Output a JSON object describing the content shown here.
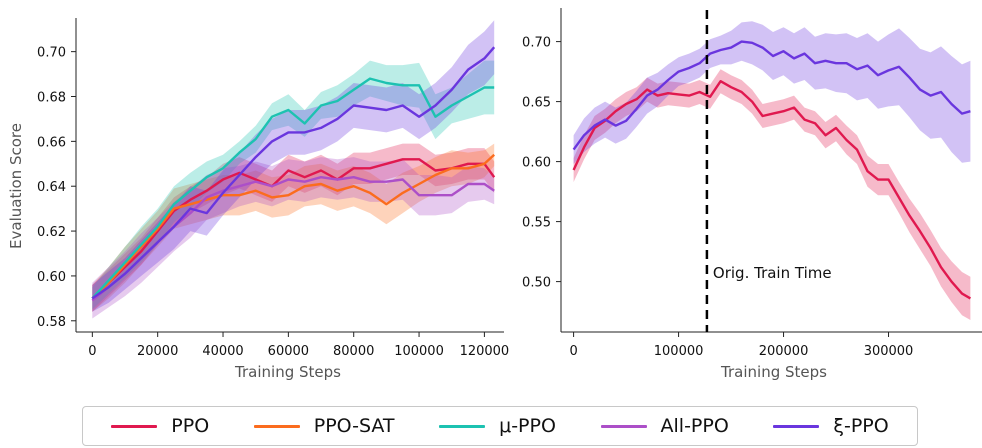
{
  "chart_data": [
    {
      "type": "line",
      "xlabel": "Training Steps",
      "ylabel": "Evaluation Score",
      "xlim": [
        -5000,
        126000
      ],
      "ylim": [
        0.575,
        0.715
      ],
      "xticks": [
        0,
        20000,
        40000,
        60000,
        80000,
        100000,
        120000
      ],
      "yticks": [
        0.58,
        0.6,
        0.62,
        0.64,
        0.66,
        0.68,
        0.7
      ],
      "ytick_labels": [
        "0.58",
        "0.60",
        "0.62",
        "0.64",
        "0.66",
        "0.68",
        "0.70"
      ],
      "x": [
        0,
        5000,
        10000,
        15000,
        20000,
        25000,
        30000,
        35000,
        40000,
        45000,
        50000,
        55000,
        60000,
        65000,
        70000,
        75000,
        80000,
        85000,
        90000,
        95000,
        100000,
        105000,
        110000,
        115000,
        120000,
        123000
      ],
      "series": [
        {
          "name": "PPO",
          "color": "#e0194f",
          "values": [
            0.59,
            0.597,
            0.604,
            0.611,
            0.62,
            0.629,
            0.634,
            0.638,
            0.643,
            0.646,
            0.643,
            0.64,
            0.647,
            0.644,
            0.647,
            0.643,
            0.648,
            0.648,
            0.65,
            0.652,
            0.652,
            0.647,
            0.648,
            0.65,
            0.65,
            0.644
          ],
          "spread": [
            0.006,
            0.006,
            0.006,
            0.006,
            0.006,
            0.006,
            0.006,
            0.006,
            0.007,
            0.007,
            0.007,
            0.007,
            0.007,
            0.007,
            0.007,
            0.007,
            0.007,
            0.007,
            0.007,
            0.007,
            0.007,
            0.007,
            0.007,
            0.007,
            0.007,
            0.007
          ]
        },
        {
          "name": "PPO-SAT",
          "color": "#fb6c1e",
          "values": [
            0.59,
            0.597,
            0.605,
            0.613,
            0.621,
            0.63,
            0.632,
            0.634,
            0.636,
            0.636,
            0.638,
            0.635,
            0.636,
            0.64,
            0.641,
            0.638,
            0.64,
            0.637,
            0.632,
            0.637,
            0.641,
            0.645,
            0.648,
            0.648,
            0.65,
            0.654
          ],
          "spread": [
            0.006,
            0.007,
            0.008,
            0.008,
            0.008,
            0.009,
            0.009,
            0.009,
            0.009,
            0.009,
            0.009,
            0.009,
            0.009,
            0.009,
            0.009,
            0.009,
            0.009,
            0.009,
            0.009,
            0.009,
            0.008,
            0.008,
            0.008,
            0.007,
            0.006,
            0.005
          ]
        },
        {
          "name": "μ-PPO",
          "color": "#1dc2b1",
          "values": [
            0.59,
            0.598,
            0.606,
            0.614,
            0.622,
            0.632,
            0.638,
            0.644,
            0.648,
            0.655,
            0.661,
            0.671,
            0.674,
            0.668,
            0.676,
            0.678,
            0.683,
            0.688,
            0.686,
            0.685,
            0.685,
            0.671,
            0.676,
            0.68,
            0.684,
            0.684
          ],
          "spread": [
            0.005,
            0.006,
            0.007,
            0.008,
            0.008,
            0.008,
            0.008,
            0.007,
            0.006,
            0.005,
            0.006,
            0.006,
            0.007,
            0.006,
            0.006,
            0.007,
            0.007,
            0.008,
            0.008,
            0.009,
            0.01,
            0.01,
            0.008,
            0.01,
            0.012,
            0.012
          ]
        },
        {
          "name": "All-PPO",
          "color": "#ac4fc8",
          "values": [
            0.589,
            0.595,
            0.601,
            0.608,
            0.615,
            0.622,
            0.628,
            0.635,
            0.638,
            0.64,
            0.642,
            0.64,
            0.643,
            0.642,
            0.644,
            0.643,
            0.644,
            0.642,
            0.642,
            0.643,
            0.636,
            0.636,
            0.636,
            0.641,
            0.641,
            0.638
          ],
          "spread": [
            0.008,
            0.009,
            0.01,
            0.011,
            0.011,
            0.011,
            0.011,
            0.01,
            0.01,
            0.009,
            0.009,
            0.009,
            0.009,
            0.009,
            0.009,
            0.009,
            0.009,
            0.009,
            0.009,
            0.009,
            0.009,
            0.009,
            0.008,
            0.008,
            0.007,
            0.006
          ]
        },
        {
          "name": "ξ-PPO",
          "color": "#6a36de",
          "values": [
            0.59,
            0.595,
            0.601,
            0.608,
            0.615,
            0.622,
            0.63,
            0.628,
            0.637,
            0.645,
            0.653,
            0.66,
            0.664,
            0.664,
            0.666,
            0.67,
            0.676,
            0.675,
            0.674,
            0.676,
            0.671,
            0.676,
            0.683,
            0.692,
            0.697,
            0.702
          ],
          "spread": [
            0.006,
            0.007,
            0.007,
            0.008,
            0.009,
            0.01,
            0.01,
            0.01,
            0.01,
            0.01,
            0.01,
            0.01,
            0.01,
            0.01,
            0.01,
            0.01,
            0.01,
            0.01,
            0.01,
            0.01,
            0.01,
            0.01,
            0.01,
            0.011,
            0.012,
            0.012
          ]
        }
      ]
    },
    {
      "type": "line",
      "xlabel": "Training Steps",
      "ylabel": "",
      "xlim": [
        -12000,
        390000
      ],
      "ylim": [
        0.458,
        0.728
      ],
      "xticks": [
        0,
        100000,
        200000,
        300000
      ],
      "yticks": [
        0.5,
        0.55,
        0.6,
        0.65,
        0.7
      ],
      "ytick_labels": [
        "0.50",
        "0.55",
        "0.60",
        "0.65",
        "0.70"
      ],
      "vline": {
        "x": 127000,
        "label": "Orig. Train Time"
      },
      "x": [
        0,
        10000,
        20000,
        30000,
        40000,
        50000,
        60000,
        70000,
        80000,
        90000,
        100000,
        110000,
        120000,
        130000,
        140000,
        150000,
        160000,
        170000,
        180000,
        190000,
        200000,
        210000,
        220000,
        230000,
        240000,
        250000,
        260000,
        270000,
        280000,
        290000,
        300000,
        310000,
        320000,
        330000,
        340000,
        350000,
        360000,
        370000,
        378000
      ],
      "series": [
        {
          "name": "PPO",
          "color": "#e0194f",
          "values": [
            0.593,
            0.612,
            0.628,
            0.634,
            0.642,
            0.648,
            0.652,
            0.66,
            0.655,
            0.657,
            0.656,
            0.655,
            0.658,
            0.654,
            0.667,
            0.662,
            0.658,
            0.65,
            0.638,
            0.64,
            0.642,
            0.645,
            0.635,
            0.632,
            0.622,
            0.628,
            0.618,
            0.61,
            0.592,
            0.585,
            0.585,
            0.57,
            0.555,
            0.542,
            0.528,
            0.512,
            0.5,
            0.49,
            0.486
          ],
          "spread": [
            0.01,
            0.01,
            0.01,
            0.01,
            0.01,
            0.01,
            0.01,
            0.01,
            0.01,
            0.01,
            0.01,
            0.01,
            0.01,
            0.01,
            0.01,
            0.01,
            0.01,
            0.01,
            0.01,
            0.01,
            0.01,
            0.01,
            0.01,
            0.01,
            0.011,
            0.011,
            0.012,
            0.012,
            0.013,
            0.013,
            0.013,
            0.013,
            0.014,
            0.015,
            0.015,
            0.016,
            0.017,
            0.018,
            0.018
          ]
        },
        {
          "name": "ξ-PPO",
          "color": "#6a36de",
          "values": [
            0.61,
            0.622,
            0.63,
            0.635,
            0.63,
            0.634,
            0.644,
            0.655,
            0.66,
            0.668,
            0.675,
            0.678,
            0.682,
            0.69,
            0.693,
            0.695,
            0.7,
            0.699,
            0.695,
            0.688,
            0.692,
            0.686,
            0.69,
            0.682,
            0.684,
            0.682,
            0.682,
            0.677,
            0.68,
            0.672,
            0.676,
            0.679,
            0.67,
            0.66,
            0.655,
            0.658,
            0.648,
            0.64,
            0.642
          ],
          "spread": [
            0.012,
            0.014,
            0.015,
            0.015,
            0.015,
            0.015,
            0.015,
            0.015,
            0.014,
            0.013,
            0.012,
            0.012,
            0.012,
            0.012,
            0.012,
            0.014,
            0.016,
            0.018,
            0.019,
            0.02,
            0.02,
            0.021,
            0.022,
            0.022,
            0.023,
            0.024,
            0.025,
            0.026,
            0.027,
            0.028,
            0.03,
            0.032,
            0.033,
            0.034,
            0.036,
            0.038,
            0.04,
            0.041,
            0.042
          ]
        }
      ]
    }
  ],
  "legend": [
    {
      "label": "PPO",
      "color": "#e0194f"
    },
    {
      "label": "PPO-SAT",
      "color": "#fb6c1e"
    },
    {
      "label": "μ-PPO",
      "color": "#1dc2b1"
    },
    {
      "label": "All-PPO",
      "color": "#ac4fc8"
    },
    {
      "label": "ξ-PPO",
      "color": "#6a36de"
    }
  ]
}
